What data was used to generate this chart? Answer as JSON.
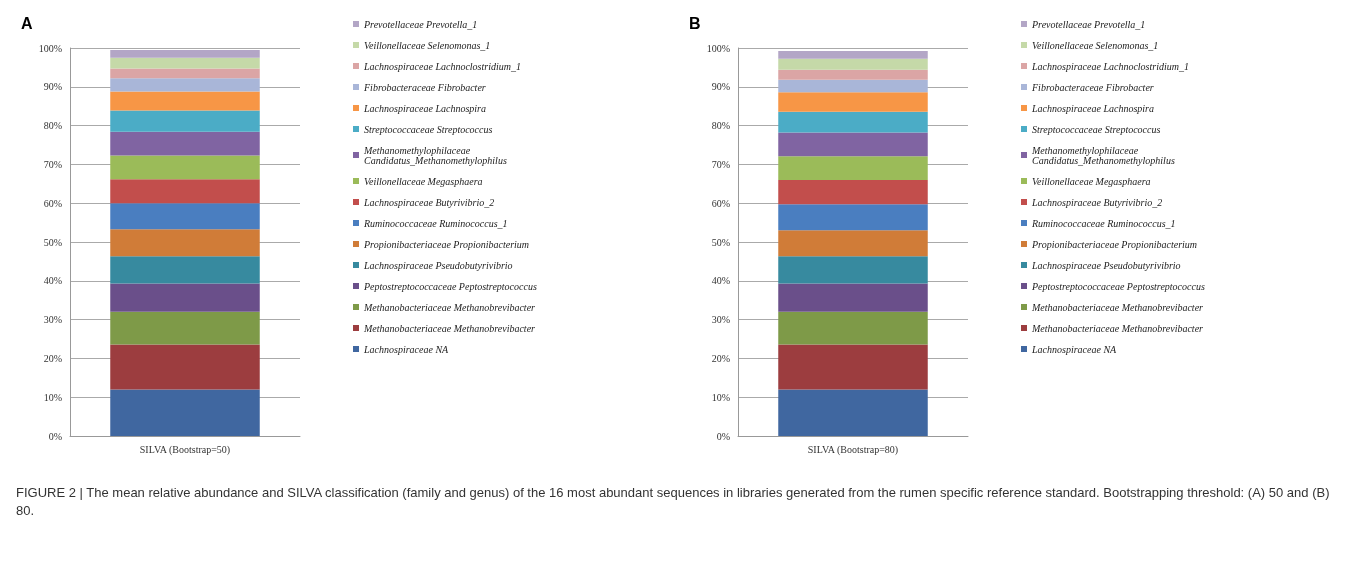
{
  "chart_data": [
    {
      "type": "bar",
      "title": "A",
      "stacked": true,
      "grid": "y",
      "legend": "right",
      "categories": [
        "SILVA (Bootstrap=50)"
      ],
      "ylim": [
        0,
        100
      ],
      "yticks": [
        {
          "value": 0,
          "label": "0%"
        },
        {
          "value": 10,
          "label": "10%"
        },
        {
          "value": 20,
          "label": "20%"
        },
        {
          "value": 30,
          "label": "30%"
        },
        {
          "value": 40,
          "label": "40%"
        },
        {
          "value": 50,
          "label": "50%"
        },
        {
          "value": 60,
          "label": "60%"
        },
        {
          "value": 70,
          "label": "70%"
        },
        {
          "value": 80,
          "label": "80%"
        },
        {
          "value": 90,
          "label": "90%"
        },
        {
          "value": 100,
          "label": "100%"
        }
      ],
      "series": [
        {
          "name": "Lachnospiraceae NA",
          "color": "#4067a0",
          "values": [
            12.0
          ]
        },
        {
          "name": "Methanobacteriaceae Methanobrevibacter",
          "color": "#9c3d3f",
          "values": [
            11.6
          ]
        },
        {
          "name": "Methanobacteriaceae Methanobrevibacter",
          "color": "#7e9a48",
          "values": [
            8.4
          ]
        },
        {
          "name": "Peptostreptococcaceae Peptostreptococcus",
          "color": "#6a4f8a",
          "values": [
            7.3
          ]
        },
        {
          "name": "Lachnospiraceae Pseudobutyrivibrio",
          "color": "#378a9f",
          "values": [
            7.0
          ]
        },
        {
          "name": "Propionibacteriaceae Propionibacterium",
          "color": "#d07c38",
          "values": [
            7.0
          ]
        },
        {
          "name": "Ruminococcaceae Ruminococcus_1",
          "color": "#4a7ec0",
          "values": [
            6.7
          ]
        },
        {
          "name": "Lachnospiraceae Butyrivibrio_2",
          "color": "#c24e4c",
          "values": [
            6.2
          ]
        },
        {
          "name": "Veillonellaceae Megasphaera",
          "color": "#9bbb59",
          "values": [
            6.1
          ]
        },
        {
          "name": "Methanomethylophilaceae Candidatus_Methanomethylophilus",
          "color": "#8064a2",
          "values": [
            6.1
          ]
        },
        {
          "name": "Streptococcaceae Streptococcus",
          "color": "#4bacc6",
          "values": [
            5.5
          ]
        },
        {
          "name": "Lachnospiraceae Lachnospira",
          "color": "#f79646",
          "values": [
            4.9
          ]
        },
        {
          "name": "Fibrobacteraceae Fibrobacter",
          "color": "#a9b6d8",
          "values": [
            3.4
          ]
        },
        {
          "name": "Lachnospiraceae Lachnoclostridium_1",
          "color": "#dba5a5",
          "values": [
            2.5
          ]
        },
        {
          "name": "Veillonellaceae Selenomonas_1",
          "color": "#c5d9a8",
          "values": [
            2.8
          ]
        },
        {
          "name": "Prevotellaceae Prevotella_1",
          "color": "#b3a6c6",
          "values": [
            2.0
          ]
        }
      ],
      "annotations": [
        "FIGURE 2 | The mean relative abundance and SILVA classification (family and genus) of the 16 most abundant sequences in libraries generated from the rumen specific reference standard. Bootstrapping threshold: (A) 50 and (B) 80."
      ]
    },
    {
      "type": "bar",
      "title": "B",
      "stacked": true,
      "grid": "y",
      "legend": "right",
      "categories": [
        "SILVA (Bootstrap=80)"
      ],
      "ylim": [
        0,
        100
      ],
      "yticks": [
        {
          "value": 0,
          "label": "0%"
        },
        {
          "value": 10,
          "label": "10%"
        },
        {
          "value": 20,
          "label": "20%"
        },
        {
          "value": 30,
          "label": "30%"
        },
        {
          "value": 40,
          "label": "40%"
        },
        {
          "value": 50,
          "label": "50%"
        },
        {
          "value": 60,
          "label": "60%"
        },
        {
          "value": 70,
          "label": "70%"
        },
        {
          "value": 80,
          "label": "80%"
        },
        {
          "value": 90,
          "label": "90%"
        },
        {
          "value": 100,
          "label": "100%"
        }
      ],
      "series": [
        {
          "name": "Lachnospiraceae NA",
          "color": "#4067a0",
          "values": [
            12.0
          ]
        },
        {
          "name": "Methanobacteriaceae Methanobrevibacter",
          "color": "#9c3d3f",
          "values": [
            11.6
          ]
        },
        {
          "name": "Methanobacteriaceae Methanobrevibacter",
          "color": "#7e9a48",
          "values": [
            8.4
          ]
        },
        {
          "name": "Peptostreptococcaceae Peptostreptococcus",
          "color": "#6a4f8a",
          "values": [
            7.3
          ]
        },
        {
          "name": "Lachnospiraceae Pseudobutyrivibrio",
          "color": "#378a9f",
          "values": [
            7.0
          ]
        },
        {
          "name": "Propionibacteriaceae Propionibacterium",
          "color": "#d07c38",
          "values": [
            6.7
          ]
        },
        {
          "name": "Ruminococcaceae Ruminococcus_1",
          "color": "#4a7ec0",
          "values": [
            6.7
          ]
        },
        {
          "name": "Lachnospiraceae Butyrivibrio_2",
          "color": "#c24e4c",
          "values": [
            6.3
          ]
        },
        {
          "name": "Veillonellaceae Megasphaera",
          "color": "#9bbb59",
          "values": [
            6.1
          ]
        },
        {
          "name": "Methanomethylophilaceae Candidatus_Methanomethylophilus",
          "color": "#8064a2",
          "values": [
            6.1
          ]
        },
        {
          "name": "Streptococcaceae Streptococcus",
          "color": "#4bacc6",
          "values": [
            5.4
          ]
        },
        {
          "name": "Lachnospiraceae Lachnospira",
          "color": "#f79646",
          "values": [
            5.0
          ]
        },
        {
          "name": "Fibrobacteraceae Fibrobacter",
          "color": "#a9b6d8",
          "values": [
            3.2
          ]
        },
        {
          "name": "Lachnospiraceae Lachnoclostridium_1",
          "color": "#dba5a5",
          "values": [
            2.6
          ]
        },
        {
          "name": "Veillonellaceae Selenomonas_1",
          "color": "#c5d9a8",
          "values": [
            2.8
          ]
        },
        {
          "name": "Prevotellaceae Prevotella_1",
          "color": "#b3a6c6",
          "values": [
            2.0
          ]
        }
      ]
    }
  ]
}
